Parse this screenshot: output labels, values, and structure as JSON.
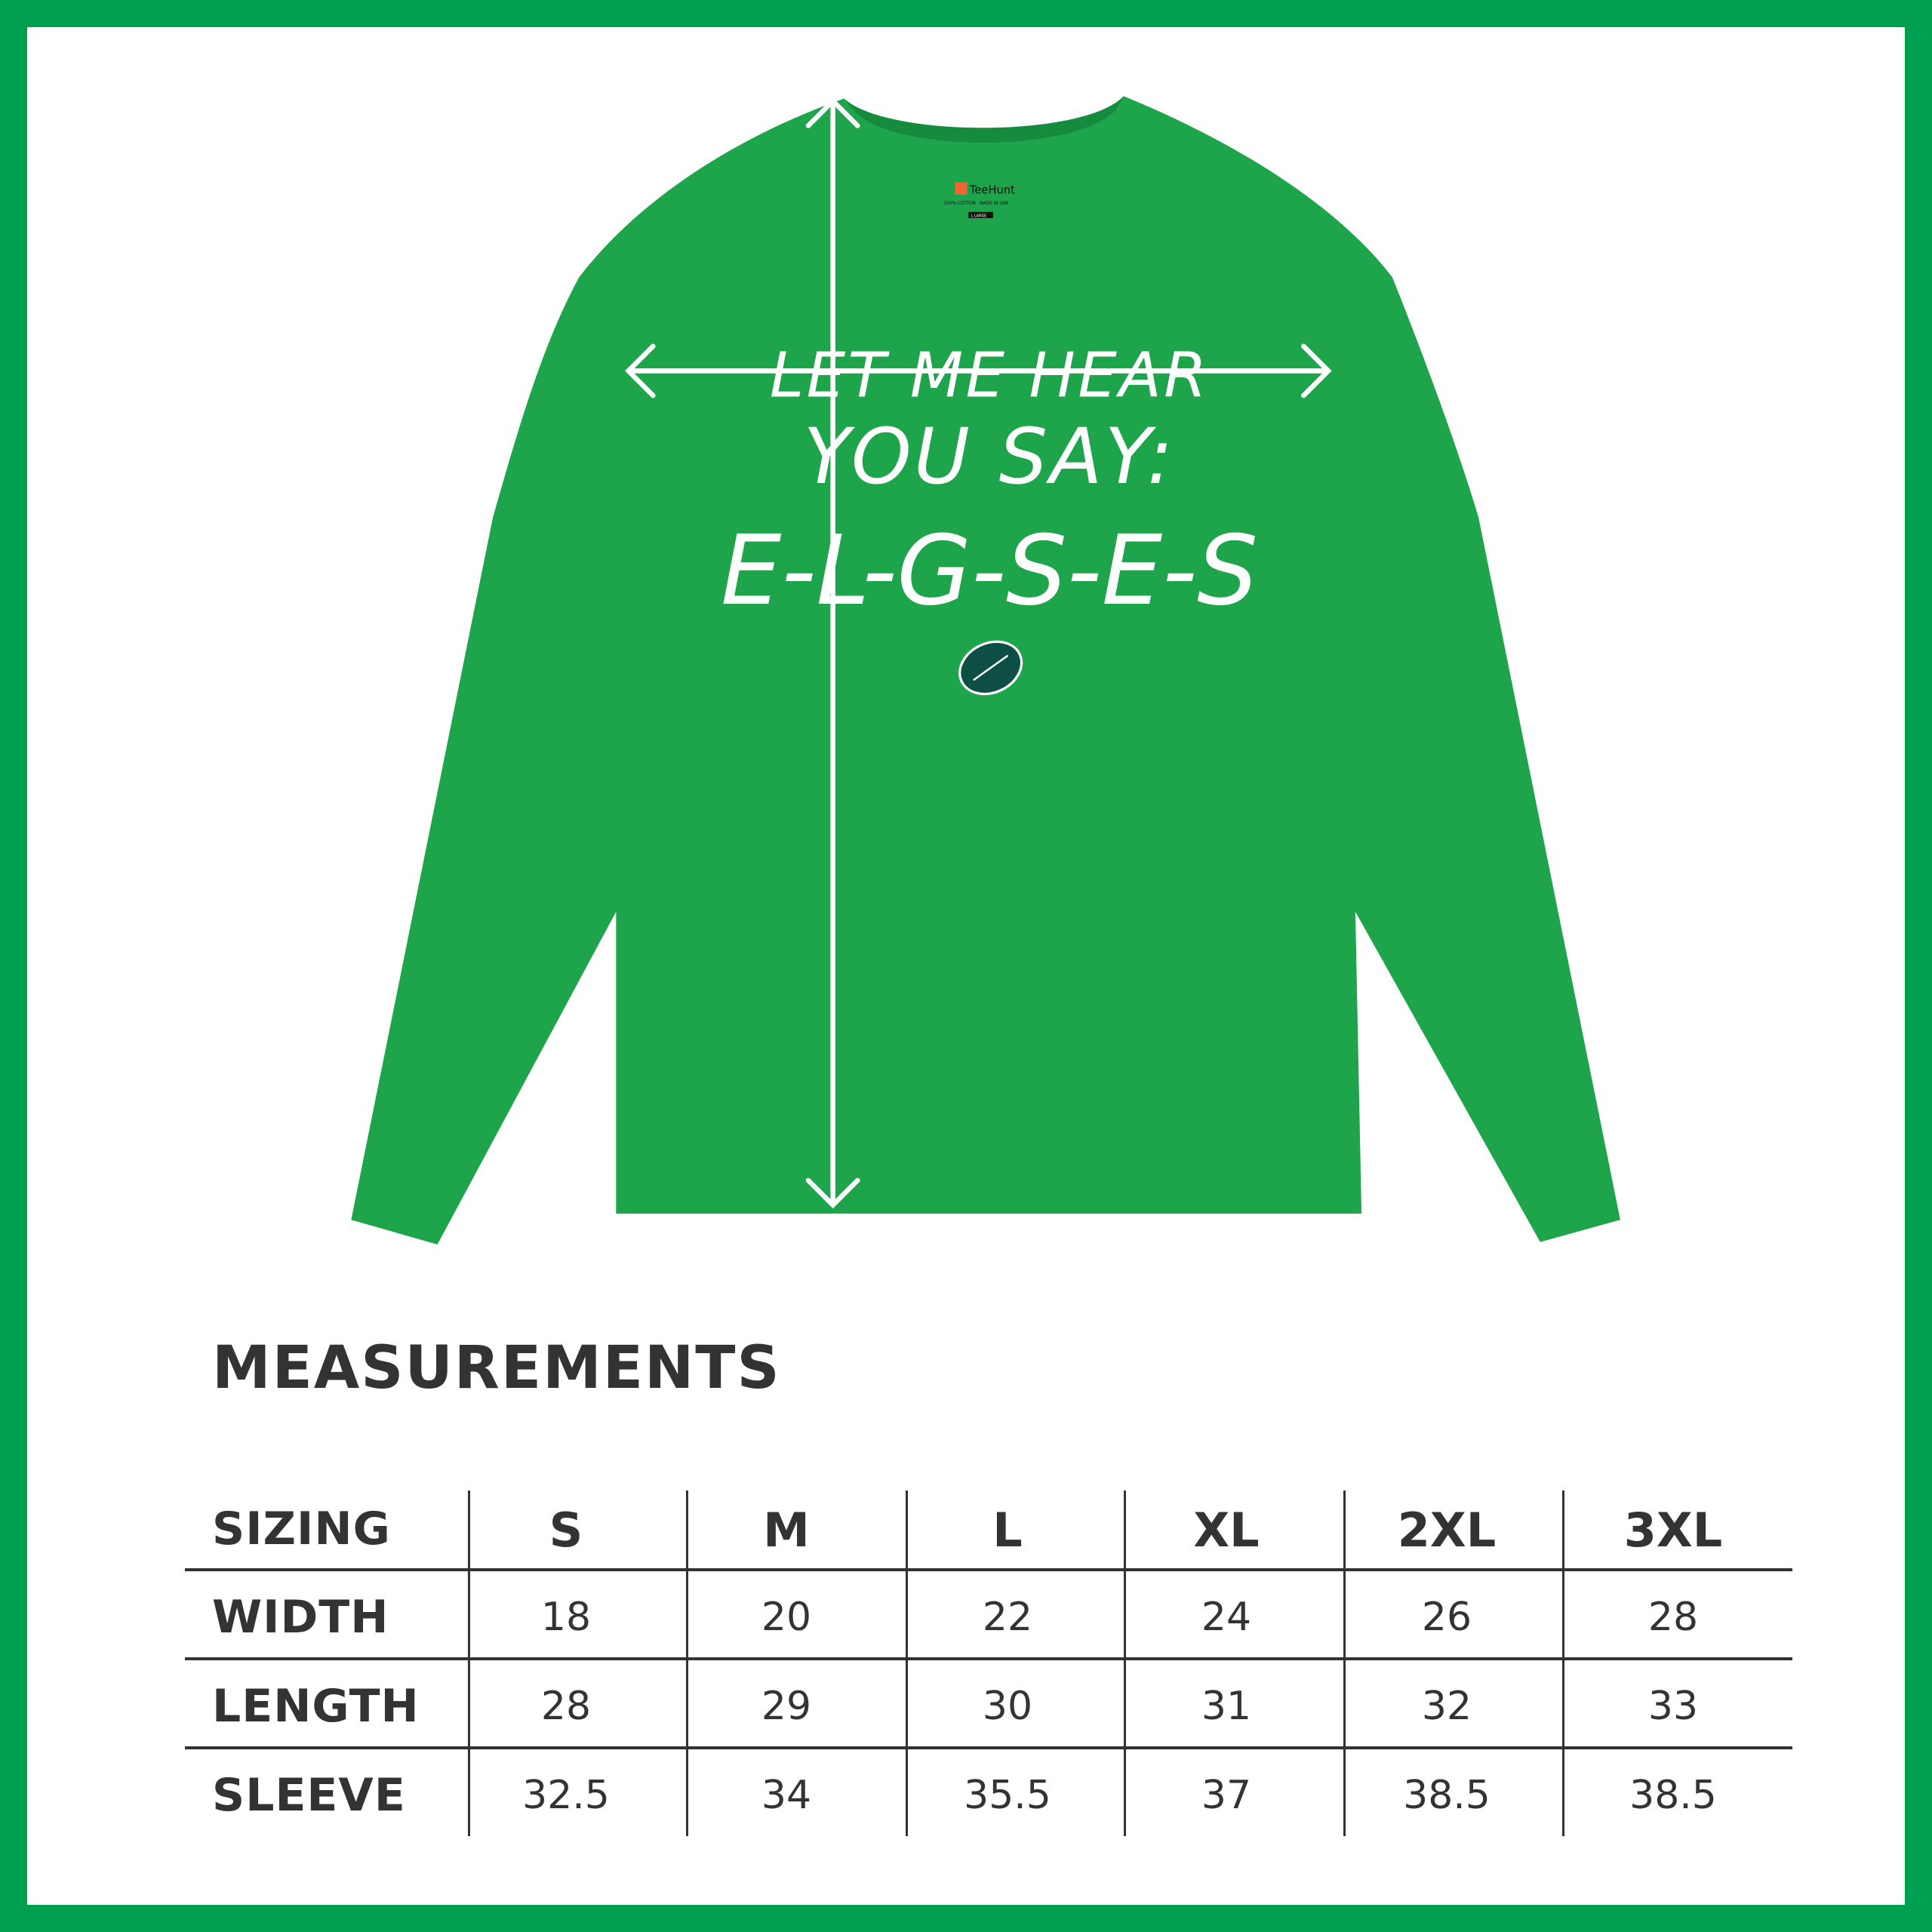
{
  "colors": {
    "border": "#009e4f",
    "shirt": "#1ea44b",
    "text": "#333333",
    "print": "#ffffff",
    "football": "#0d4f44"
  },
  "shirt": {
    "tag": {
      "brand": "TeeHunt",
      "line1": "100% COTTON",
      "line2": "MADE IN USA",
      "size": "L LARGE"
    },
    "print": {
      "line1": "LET ME HEAR",
      "line2": "YOU SAY:",
      "line3": "E-L-G-S-E-S",
      "icon": "football-icon"
    }
  },
  "title": "MEASUREMENTS",
  "table": {
    "header_label": "SIZING",
    "sizes": [
      "S",
      "M",
      "L",
      "XL",
      "2XL",
      "3XL"
    ],
    "rows": [
      {
        "label": "WIDTH",
        "values": [
          "18",
          "20",
          "22",
          "24",
          "26",
          "28"
        ]
      },
      {
        "label": "LENGTH",
        "values": [
          "28",
          "29",
          "30",
          "31",
          "32",
          "33"
        ]
      },
      {
        "label": "SLEEVE",
        "values": [
          "32.5",
          "34",
          "35.5",
          "37",
          "38.5",
          "38.5"
        ]
      }
    ]
  }
}
